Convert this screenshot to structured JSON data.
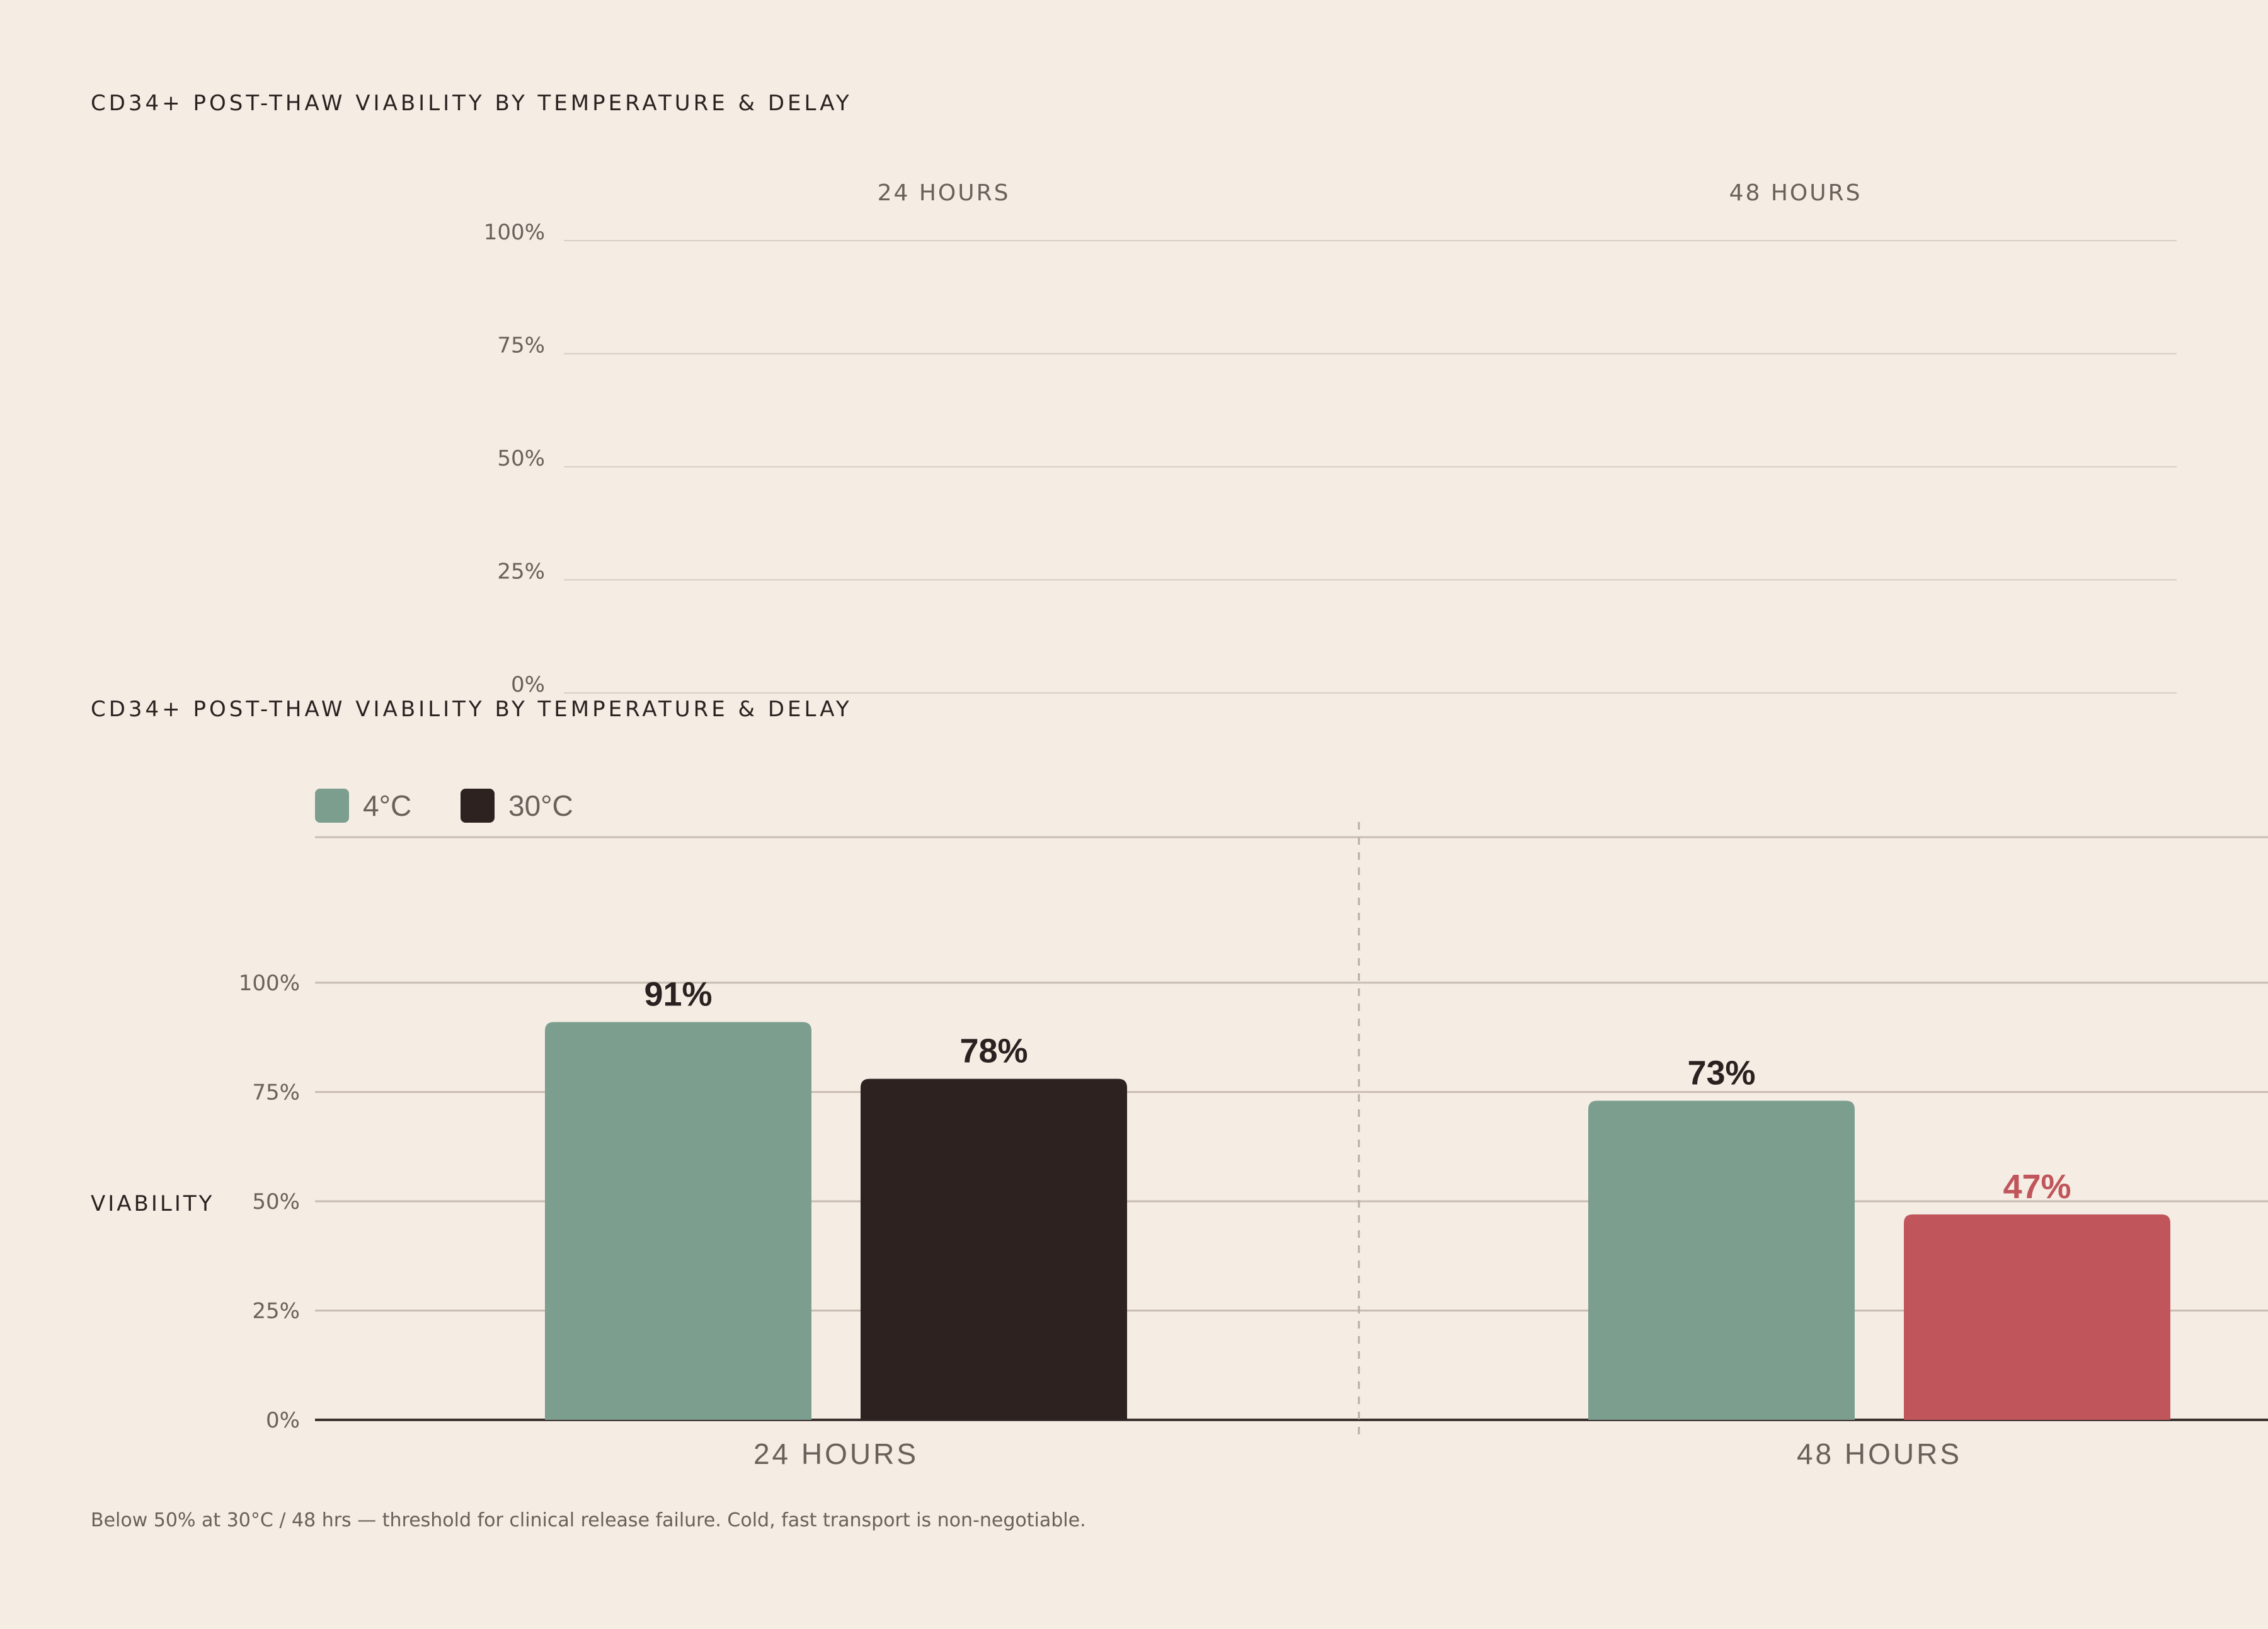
{
  "chart_data": [
    {
      "type": "bar",
      "title": "CD34+ POST-THAW VIABILITY BY TEMPERATURE & DELAY",
      "facets": [
        "24 HOURS",
        "48 HOURS"
      ],
      "yticks": [
        "100%",
        "75%",
        "50%",
        "25%",
        "0%"
      ],
      "ylim": [
        0,
        100
      ],
      "series": []
    },
    {
      "type": "bar",
      "title": "CD34+ POST-THAW VIABILITY BY TEMPERATURE & DELAY",
      "ylabel": "VIABILITY",
      "categories": [
        "24 HOURS",
        "48 HOURS"
      ],
      "yticks": [
        "100%",
        "75%",
        "50%",
        "25%",
        "0%"
      ],
      "ylim": [
        0,
        100
      ],
      "legend_position": "top-left",
      "series": [
        {
          "name": "4°C",
          "color": "#7b9e8e",
          "values": [
            91,
            73
          ],
          "labels": [
            "91%",
            "73%"
          ]
        },
        {
          "name": "30°C",
          "color": "#2d2220",
          "values": [
            78,
            47
          ],
          "labels": [
            "78%",
            "47%"
          ]
        }
      ],
      "highlight": {
        "category": "48 HOURS",
        "series": "30°C",
        "color": "#c0555b"
      },
      "grid": true
    }
  ],
  "footnote": "Below 50% at 30°C / 48 hrs — threshold for clinical release failure. Cold, fast transport is non-negotiable."
}
